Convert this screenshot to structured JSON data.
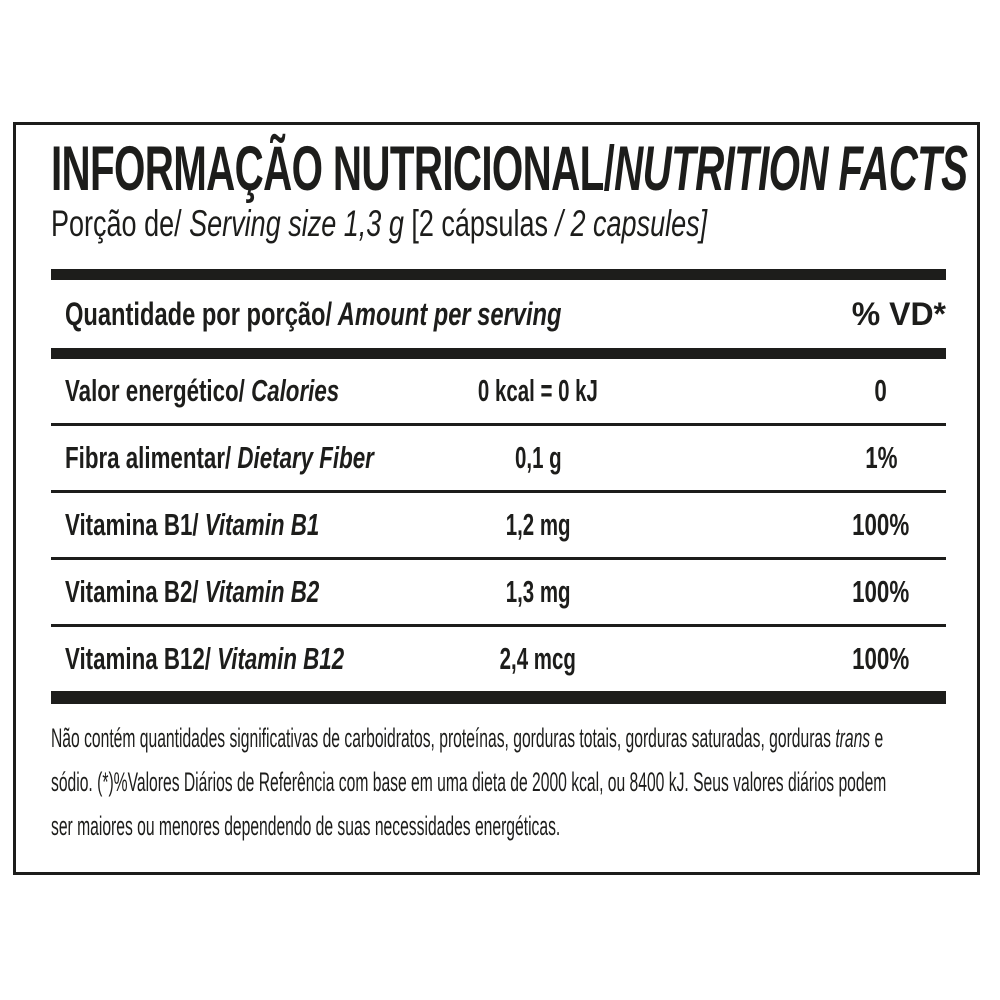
{
  "colors": {
    "ink": "#1d1d1b",
    "background": "#ffffff"
  },
  "label": {
    "title": {
      "pt": "INFORMAÇÃO NUTRICIONAL/",
      "en": "NUTRITION FACTS"
    },
    "serving_line": {
      "pt_prefix": "Porção de/",
      "en_italic": " Serving size 1,3 g ",
      "bracket_pt": "[2 cápsulas ",
      "bracket_en": "/ 2 capsules]"
    },
    "table": {
      "header": {
        "pt": "Quantidade por porção/",
        "en": " Amount per serving",
        "dv": "% VD*"
      },
      "rows": [
        {
          "pt": "Valor energético/",
          "en": " Calories",
          "amount": "0 kcal = 0 kJ",
          "dv": "0"
        },
        {
          "pt": "Fibra alimentar/",
          "en": " Dietary Fiber",
          "amount": "0,1 g",
          "dv": "1%"
        },
        {
          "pt": "Vitamina B1/",
          "en": " Vitamin B1",
          "amount": "1,2 mg",
          "dv": "100%"
        },
        {
          "pt": "Vitamina B2/",
          "en": " Vitamin B2",
          "amount": "1,3 mg",
          "dv": "100%"
        },
        {
          "pt": "Vitamina B12/",
          "en": " Vitamin B12",
          "amount": "2,4 mcg",
          "dv": "100%"
        }
      ]
    },
    "footnote": {
      "line1_a": "Não contém quantidades significativas de carboidratos, proteínas, gorduras totais, gorduras saturadas, gorduras ",
      "line1_trans": "trans",
      "line1_b": " e",
      "line2": "sódio. (*)%Valores Diários de Referência com base em uma dieta de 2000 kcal, ou 8400 kJ. Seus valores diários podem",
      "line3": "ser maiores ou menores dependendo de suas necessidades energéticas."
    }
  }
}
